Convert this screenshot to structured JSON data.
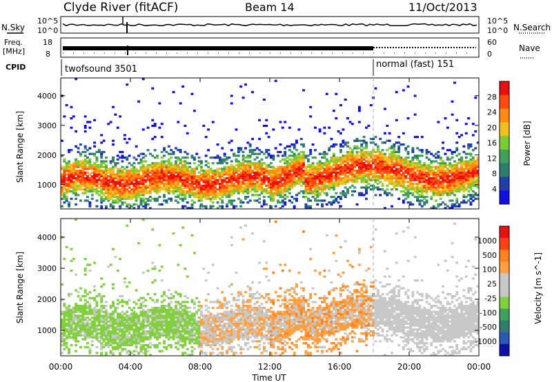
{
  "header": {
    "title": "Clyde River (fitACF)",
    "beam": "Beam 14",
    "date": "11/Oct/2013"
  },
  "strip_panels": {
    "nsky": {
      "left_label": "N.Sky",
      "right_label": "N.Search",
      "left_ticks": [
        "10^5",
        "10^0"
      ],
      "right_ticks": [
        "10^5",
        "10^0"
      ]
    },
    "freq": {
      "left_label": "Freq.",
      "left_unit": "[MHz]",
      "right_label": "Nave",
      "left_ticks": [
        "18",
        "8"
      ],
      "right_ticks": [
        "60",
        "0"
      ]
    },
    "cpid": {
      "label": "CPID",
      "modes": [
        {
          "name": "twofsound 3501"
        },
        {
          "name": "normal (fast) 151"
        }
      ]
    }
  },
  "axes": {
    "xlabel": "Time UT",
    "ylabel": "Slant Range [km]",
    "xticks": [
      "00:00",
      "04:00",
      "08:00",
      "12:00",
      "16:00",
      "20:00",
      "00:00"
    ],
    "yticks": [
      "1000",
      "2000",
      "3000",
      "4000"
    ]
  },
  "colorbars": {
    "power": {
      "label": "Power [dB]",
      "ticks": [
        "28",
        "24",
        "20",
        "16",
        "12",
        "8",
        "4"
      ]
    },
    "velocity": {
      "label": "Velocity [m s^-1]",
      "ticks": [
        "1000",
        "500",
        "100",
        "25",
        "-25",
        "-100",
        "-500",
        "-1000"
      ]
    }
  },
  "chart_data": {
    "type": "heatmap",
    "panels": [
      "Power",
      "Velocity"
    ],
    "x_range_hours_ut": [
      0,
      24
    ],
    "y_range_km": [
      180,
      4600
    ],
    "mode_change_ut_hours": 18.1,
    "power_scale_db": [
      0,
      30
    ],
    "velocity_scale_ms": [
      -1000,
      1000
    ],
    "power_colors": [
      "#1010e0",
      "#2040a8",
      "#2e7d6e",
      "#3fa05a",
      "#7ccd32",
      "#f0c020",
      "#ff8c10",
      "#ff4a10",
      "#e81010"
    ],
    "velocity_colors": [
      "#1010a8",
      "#2a58b4",
      "#2e7d6e",
      "#3fa05a",
      "#82d040",
      "#c8c8c8",
      "#c8c8c8",
      "#ffa040",
      "#ff8020",
      "#ff4010",
      "#e81010"
    ],
    "scatter_bands_km": [
      {
        "ut_start": 0.0,
        "ut_end": 2.5,
        "range_min": 600,
        "range_max": 1700
      },
      {
        "ut_start": 2.5,
        "ut_end": 11.0,
        "range_min": 700,
        "range_max": 1900
      },
      {
        "ut_start": 11.0,
        "ut_end": 14.0,
        "range_min": 700,
        "range_max": 2400
      },
      {
        "ut_start": 14.0,
        "ut_end": 24.0,
        "range_min": 600,
        "range_max": 2300
      }
    ]
  }
}
